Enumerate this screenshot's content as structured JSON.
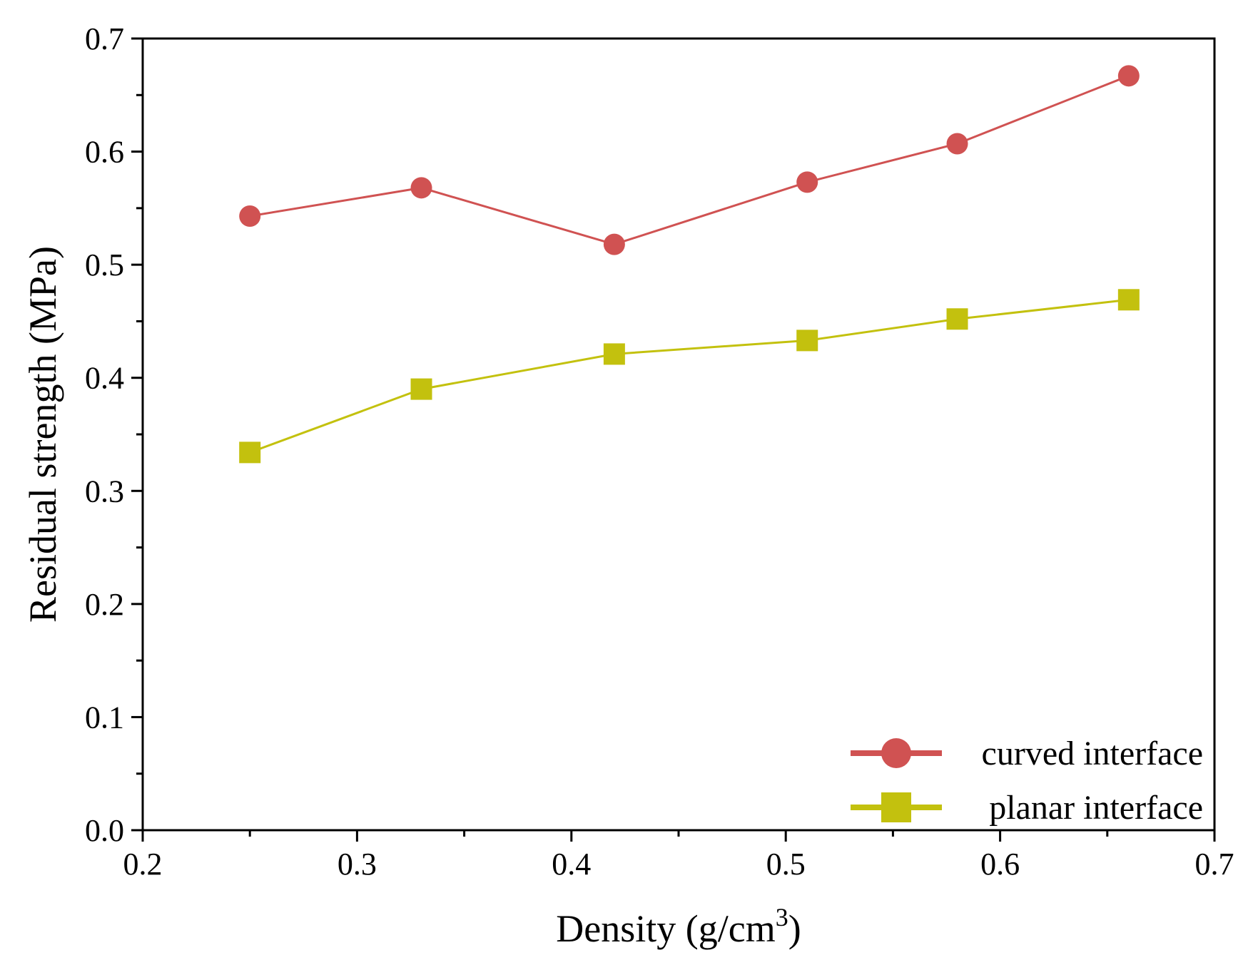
{
  "chart_data": {
    "type": "line",
    "title": "",
    "xlabel": "Density (g/cm",
    "xlabel_superscript": "3",
    "xlabel_close": ")",
    "ylabel": "Residual strength (MPa)",
    "xlim": [
      0.2,
      0.7
    ],
    "ylim": [
      0.0,
      0.7
    ],
    "x_ticks": [
      0.2,
      0.3,
      0.4,
      0.5,
      0.6,
      0.7
    ],
    "x_tick_labels": [
      "0.2",
      "0.3",
      "0.4",
      "0.5",
      "0.6",
      "0.7"
    ],
    "y_ticks": [
      0.0,
      0.1,
      0.2,
      0.3,
      0.4,
      0.5,
      0.6,
      0.7
    ],
    "y_tick_labels": [
      "0.0",
      "0.1",
      "0.2",
      "0.3",
      "0.4",
      "0.5",
      "0.6",
      "0.7"
    ],
    "x_minor_step": 0.05,
    "y_minor_step": 0.05,
    "grid": false,
    "legend_position": "bottom-right",
    "x": [
      0.25,
      0.33,
      0.42,
      0.51,
      0.58,
      0.66
    ],
    "series": [
      {
        "name": "curved interface",
        "marker": "circle",
        "color": "#d05252",
        "values": [
          0.543,
          0.568,
          0.518,
          0.573,
          0.607,
          0.667
        ]
      },
      {
        "name": "planar interface",
        "marker": "square",
        "color": "#c3c10e",
        "values": [
          0.334,
          0.39,
          0.421,
          0.433,
          0.452,
          0.469
        ]
      }
    ]
  }
}
